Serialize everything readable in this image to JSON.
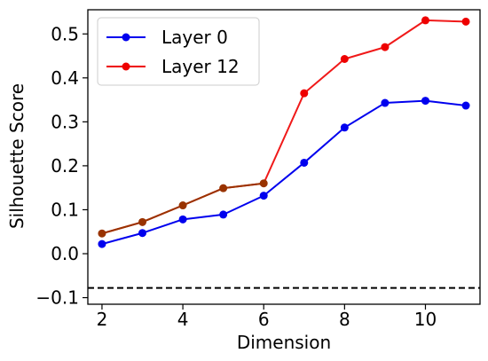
{
  "chart_data": {
    "type": "line",
    "xlabel": "Dimension",
    "ylabel": "Silhouette Score",
    "xlim": [
      1.65,
      11.35
    ],
    "ylim": [
      -0.115,
      0.555
    ],
    "xticks": [
      2,
      4,
      6,
      8,
      10
    ],
    "yticks": [
      -0.1,
      0.0,
      0.1,
      0.2,
      0.3,
      0.4,
      0.5
    ],
    "ytick_labels": [
      "−0.1",
      "0.0",
      "0.1",
      "0.2",
      "0.3",
      "0.4",
      "0.5"
    ],
    "grid": false,
    "legend_position": "top-left",
    "x": [
      2,
      3,
      4,
      5,
      6,
      7,
      8,
      9,
      10,
      11
    ],
    "series": [
      {
        "name": "Layer 0",
        "color": "#0000ee",
        "values": [
          0.022,
          0.047,
          0.078,
          0.089,
          0.132,
          0.207,
          0.287,
          0.343,
          0.348,
          0.337
        ]
      },
      {
        "name": "Layer 12",
        "color": "#ee0000",
        "values": [
          0.046,
          0.072,
          0.11,
          0.149,
          0.16,
          0.365,
          0.443,
          0.47,
          0.531,
          0.528
        ]
      }
    ],
    "overlap_color": "#993300",
    "reference_line": {
      "y": -0.078,
      "style": "dashed",
      "color": "#000000"
    }
  }
}
